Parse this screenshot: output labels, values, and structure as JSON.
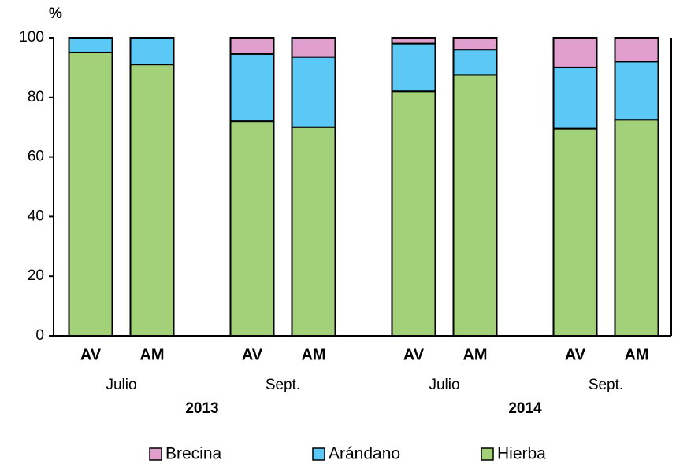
{
  "chart_data": {
    "type": "stacked-bar",
    "ylabel": "%",
    "categories": [
      "AV",
      "AM",
      "AV",
      "AM",
      "AV",
      "AM",
      "AV",
      "AM"
    ],
    "months": [
      "Julio",
      "Sept.",
      "Julio",
      "Sept."
    ],
    "years": [
      "2013",
      "2014"
    ],
    "series": [
      {
        "name": "Hierba",
        "color": "#a3d17a",
        "values": [
          95,
          91,
          72,
          70,
          82,
          87.5,
          69.5,
          72.5
        ]
      },
      {
        "name": "Arándano",
        "color": "#5bc8f5",
        "values": [
          5,
          9,
          22.5,
          23.5,
          16,
          8.5,
          20.5,
          19.5
        ]
      },
      {
        "name": "Brecina",
        "color": "#e09fcc",
        "values": [
          0,
          0,
          5.5,
          6.5,
          2,
          4,
          10,
          8
        ]
      }
    ],
    "ylim": [
      0,
      100
    ],
    "yticks": [
      0,
      20,
      40,
      60,
      80,
      100
    ]
  }
}
